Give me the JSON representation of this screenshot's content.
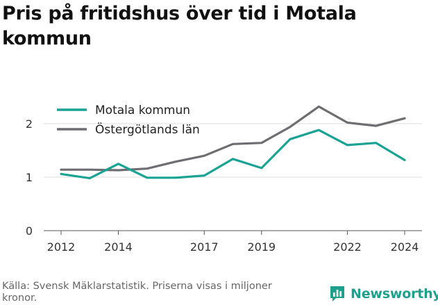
{
  "title": "Pris på fritidshus över tid i Motala kommun",
  "source": "Källa: Svensk Mäklarstatistik. Priserna visas i miljoner kronor.",
  "brand": {
    "name": "Newsworthy",
    "icon": "newsworthy-logo-icon",
    "color": "#1fa08e"
  },
  "chart_data": {
    "type": "line",
    "title": "Pris på fritidshus över tid i Motala kommun",
    "xlabel": "",
    "ylabel": "",
    "x": [
      2012,
      2013,
      2014,
      2015,
      2016,
      2017,
      2018,
      2019,
      2020,
      2021,
      2022,
      2023,
      2024
    ],
    "x_ticks": [
      2012,
      2014,
      2017,
      2019,
      2022,
      2024
    ],
    "y_ticks": [
      0,
      1,
      2
    ],
    "xlim": [
      2012,
      2024
    ],
    "ylim": [
      0,
      2.35
    ],
    "grid": true,
    "legend": "top-left",
    "series": [
      {
        "name": "Motala kommun",
        "color": "#1aa394",
        "values": [
          1.06,
          0.98,
          1.25,
          0.99,
          0.99,
          1.03,
          1.34,
          1.17,
          1.71,
          1.88,
          1.6,
          1.64,
          1.32
        ]
      },
      {
        "name": "Östergötlands län",
        "color": "#6d6d72",
        "values": [
          1.14,
          1.14,
          1.13,
          1.16,
          1.29,
          1.4,
          1.62,
          1.64,
          1.94,
          2.32,
          2.02,
          1.96,
          2.1
        ]
      }
    ]
  }
}
